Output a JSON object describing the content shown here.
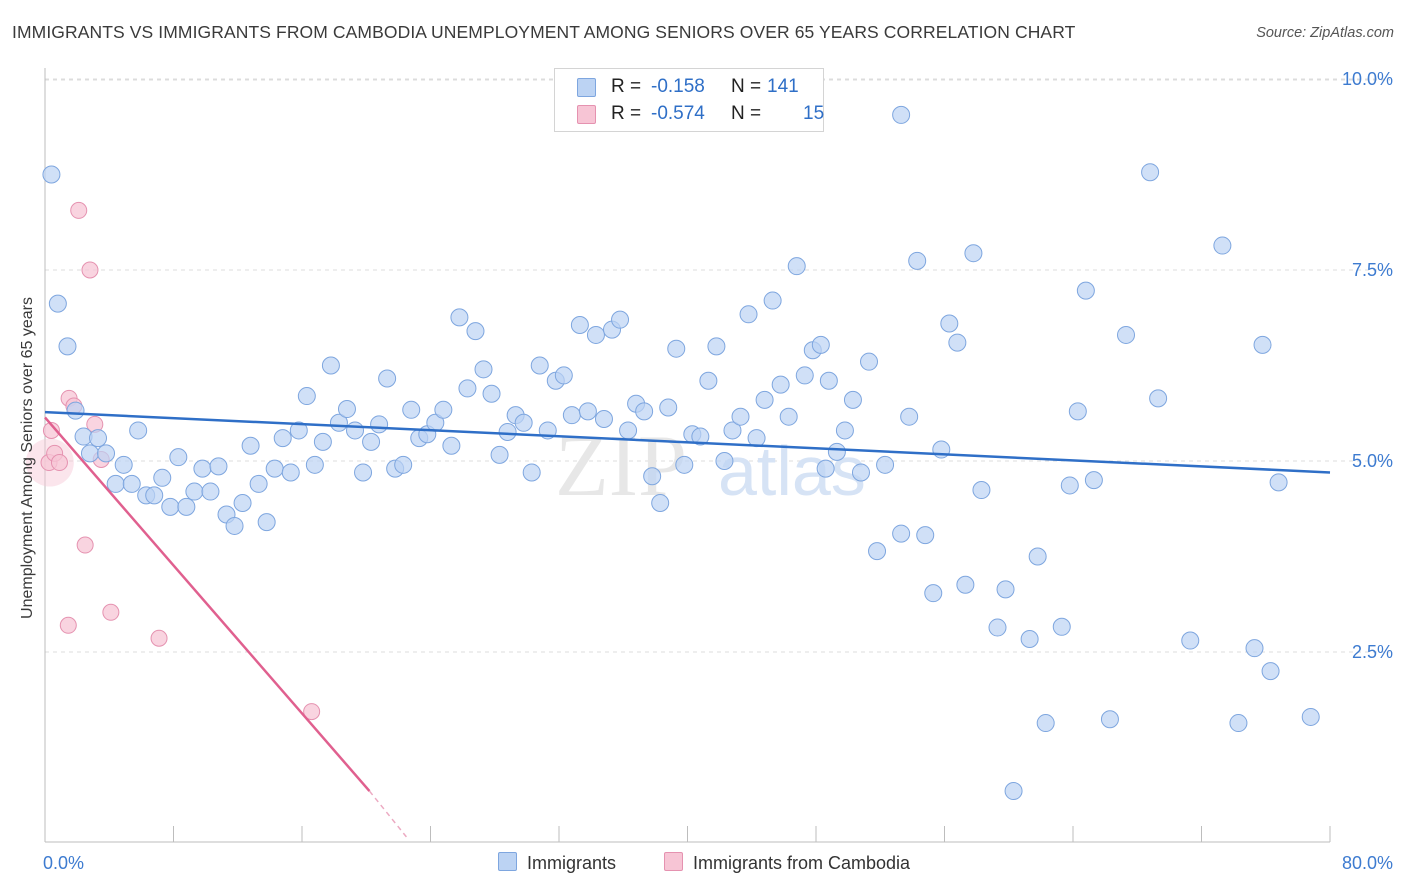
{
  "title": "IMMIGRANTS VS IMMIGRANTS FROM CAMBODIA UNEMPLOYMENT AMONG SENIORS OVER 65 YEARS CORRELATION CHART",
  "source": "Source: ZipAtlas.com",
  "watermark": {
    "zip": "ZIP",
    "atlas": "atlas"
  },
  "legend": {
    "rows": [
      {
        "r_label": "R =",
        "r_value": "-0.158",
        "n_label": "N =",
        "n_value": "141"
      },
      {
        "r_label": "R =",
        "r_value": "-0.574",
        "n_label": "N =",
        "n_value": "15"
      }
    ]
  },
  "bottom_legend": {
    "immigrants": "Immigrants",
    "cambodia": "Immigrants from Cambodia"
  },
  "colors": {
    "blue_fill": "#bcd3f3",
    "blue_stroke": "#7ea6df",
    "blue_line": "#2f6fc7",
    "pink_fill": "#f7c5d5",
    "pink_stroke": "#e592b0",
    "pink_line": "#e0608f",
    "tick_label": "#3d7bd0",
    "grid": "#dcdcdc"
  },
  "chart_data": {
    "type": "scatter",
    "title": "IMMIGRANTS VS IMMIGRANTS FROM CAMBODIA UNEMPLOYMENT AMONG SENIORS OVER 65 YEARS CORRELATION CHART",
    "xlabel": "",
    "ylabel": "Unemployment Among Seniors over 65 years",
    "xlim": [
      0,
      80
    ],
    "ylim": [
      0,
      10.5
    ],
    "x_tick_labels": [
      "0.0%",
      "80.0%"
    ],
    "y_ticks": [
      2.5,
      5.0,
      7.5,
      10.0
    ],
    "y_tick_labels": [
      "2.5%",
      "5.0%",
      "7.5%",
      "10.0%"
    ],
    "grid": "horizontal dashed",
    "legend_position": "bottom-center",
    "series": [
      {
        "name": "Immigrants",
        "color": "#bcd3f3",
        "points": [
          [
            0.4,
            8.75
          ],
          [
            0.8,
            7.06
          ],
          [
            1.4,
            6.5
          ],
          [
            1.9,
            5.66
          ],
          [
            2.4,
            5.32
          ],
          [
            2.8,
            5.1
          ],
          [
            3.3,
            5.3
          ],
          [
            3.8,
            5.1
          ],
          [
            4.4,
            4.7
          ],
          [
            4.9,
            4.95
          ],
          [
            5.4,
            4.7
          ],
          [
            5.8,
            5.4
          ],
          [
            6.3,
            4.55
          ],
          [
            6.8,
            4.55
          ],
          [
            7.3,
            4.78
          ],
          [
            7.8,
            4.4
          ],
          [
            8.3,
            5.05
          ],
          [
            8.8,
            4.4
          ],
          [
            9.3,
            4.6
          ],
          [
            9.8,
            4.9
          ],
          [
            10.3,
            4.6
          ],
          [
            10.8,
            4.93
          ],
          [
            11.3,
            4.3
          ],
          [
            11.8,
            4.15
          ],
          [
            12.3,
            4.45
          ],
          [
            12.8,
            5.2
          ],
          [
            13.3,
            4.7
          ],
          [
            13.8,
            4.2
          ],
          [
            14.3,
            4.9
          ],
          [
            14.8,
            5.3
          ],
          [
            15.3,
            4.85
          ],
          [
            15.8,
            5.4
          ],
          [
            16.3,
            5.85
          ],
          [
            16.8,
            4.95
          ],
          [
            17.3,
            5.25
          ],
          [
            17.8,
            6.25
          ],
          [
            18.3,
            5.5
          ],
          [
            18.8,
            5.68
          ],
          [
            19.3,
            5.4
          ],
          [
            19.8,
            4.85
          ],
          [
            20.3,
            5.25
          ],
          [
            20.8,
            5.48
          ],
          [
            21.3,
            6.08
          ],
          [
            21.8,
            4.9
          ],
          [
            22.3,
            4.95
          ],
          [
            22.8,
            5.67
          ],
          [
            23.3,
            5.3
          ],
          [
            23.8,
            5.35
          ],
          [
            24.3,
            5.5
          ],
          [
            24.8,
            5.67
          ],
          [
            25.3,
            5.2
          ],
          [
            25.8,
            6.88
          ],
          [
            26.3,
            5.95
          ],
          [
            26.8,
            6.7
          ],
          [
            27.3,
            6.2
          ],
          [
            27.8,
            5.88
          ],
          [
            28.3,
            5.08
          ],
          [
            28.8,
            5.38
          ],
          [
            29.3,
            5.6
          ],
          [
            29.8,
            5.5
          ],
          [
            30.3,
            4.85
          ],
          [
            30.8,
            6.25
          ],
          [
            31.3,
            5.4
          ],
          [
            31.8,
            6.05
          ],
          [
            32.3,
            6.12
          ],
          [
            32.8,
            5.6
          ],
          [
            33.3,
            6.78
          ],
          [
            33.8,
            5.65
          ],
          [
            34.3,
            6.65
          ],
          [
            34.8,
            5.55
          ],
          [
            35.3,
            6.72
          ],
          [
            35.8,
            6.85
          ],
          [
            36.3,
            5.4
          ],
          [
            36.8,
            5.75
          ],
          [
            37.3,
            5.65
          ],
          [
            37.8,
            4.8
          ],
          [
            38.3,
            4.45
          ],
          [
            38.8,
            5.7
          ],
          [
            39.3,
            6.47
          ],
          [
            39.8,
            4.95
          ],
          [
            40.3,
            5.35
          ],
          [
            40.8,
            5.32
          ],
          [
            41.3,
            6.05
          ],
          [
            41.8,
            6.5
          ],
          [
            42.3,
            5.0
          ],
          [
            42.8,
            5.4
          ],
          [
            43.3,
            5.58
          ],
          [
            43.8,
            6.92
          ],
          [
            44.3,
            5.3
          ],
          [
            44.8,
            5.8
          ],
          [
            45.3,
            7.1
          ],
          [
            45.8,
            6.0
          ],
          [
            46.3,
            5.58
          ],
          [
            46.8,
            7.55
          ],
          [
            47.3,
            6.12
          ],
          [
            47.8,
            6.45
          ],
          [
            48.3,
            6.52
          ],
          [
            48.8,
            6.05
          ],
          [
            49.3,
            5.12
          ],
          [
            49.8,
            5.4
          ],
          [
            50.3,
            5.8
          ],
          [
            50.8,
            4.85
          ],
          [
            51.3,
            6.3
          ],
          [
            51.8,
            3.82
          ],
          [
            52.3,
            4.95
          ],
          [
            53.3,
            4.05
          ],
          [
            53.8,
            5.58
          ],
          [
            54.3,
            7.62
          ],
          [
            54.8,
            4.03
          ],
          [
            55.3,
            3.27
          ],
          [
            55.8,
            5.15
          ],
          [
            56.3,
            6.8
          ],
          [
            56.8,
            6.55
          ],
          [
            57.3,
            3.38
          ],
          [
            57.8,
            7.72
          ],
          [
            58.3,
            4.62
          ],
          [
            59.3,
            2.82
          ],
          [
            59.8,
            3.32
          ],
          [
            60.3,
            0.68
          ],
          [
            61.3,
            2.67
          ],
          [
            61.8,
            3.75
          ],
          [
            62.3,
            1.57
          ],
          [
            63.3,
            2.83
          ],
          [
            63.8,
            4.68
          ],
          [
            64.3,
            5.65
          ],
          [
            64.8,
            7.23
          ],
          [
            65.3,
            4.75
          ],
          [
            66.3,
            1.62
          ],
          [
            67.3,
            6.65
          ],
          [
            68.8,
            8.78
          ],
          [
            69.3,
            5.82
          ],
          [
            71.3,
            2.65
          ],
          [
            73.3,
            7.82
          ],
          [
            74.3,
            1.57
          ],
          [
            75.3,
            2.55
          ],
          [
            75.8,
            6.52
          ],
          [
            76.3,
            2.25
          ],
          [
            76.8,
            4.72
          ],
          [
            78.8,
            1.65
          ],
          [
            53.3,
            9.53
          ],
          [
            48.6,
            4.9
          ]
        ]
      },
      {
        "name": "Immigrants from Cambodia",
        "color": "#f7c5d5",
        "points": [
          [
            0.25,
            4.98
          ],
          [
            0.4,
            5.4
          ],
          [
            0.6,
            5.1
          ],
          [
            0.9,
            4.98
          ],
          [
            1.5,
            5.82
          ],
          [
            1.8,
            5.72
          ],
          [
            2.1,
            8.28
          ],
          [
            2.5,
            3.9
          ],
          [
            2.8,
            7.5
          ],
          [
            3.1,
            5.48
          ],
          [
            3.5,
            5.02
          ],
          [
            1.45,
            2.85
          ],
          [
            4.1,
            3.02
          ],
          [
            7.1,
            2.68
          ],
          [
            16.6,
            1.72
          ]
        ]
      }
    ],
    "trendlines": [
      {
        "series": "Immigrants",
        "x": [
          0,
          80
        ],
        "y": [
          5.64,
          4.85
        ]
      },
      {
        "series": "Immigrants from Cambodia",
        "x": [
          0,
          20.2
        ],
        "y": [
          5.57,
          0.68
        ],
        "dashed_extension_to": [
          22.5,
          0.08
        ]
      }
    ]
  }
}
